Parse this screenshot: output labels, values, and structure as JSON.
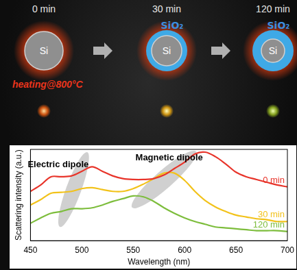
{
  "illustration": {
    "process": "heating@800°C",
    "stages": [
      {
        "time": "0 min",
        "core": "Si"
      },
      {
        "time": "30 min",
        "core": "Si",
        "shell": "SiO₂"
      },
      {
        "time": "120 min",
        "core": "Si",
        "shell": "SiO₂"
      }
    ]
  },
  "chart_data": {
    "type": "line",
    "x_label": "Wavelength (nm)",
    "y_label": "Scattering intensity (a.u.)",
    "annotations": [
      "Electric dipole",
      "Magnetic dipole"
    ],
    "x": [
      450,
      460,
      470,
      480,
      490,
      500,
      510,
      520,
      530,
      540,
      550,
      560,
      570,
      580,
      590,
      600,
      610,
      620,
      630,
      640,
      650,
      660,
      670,
      680,
      690,
      700
    ],
    "series": [
      {
        "name": "0 min",
        "color": "#e8342a",
        "values": [
          5.4,
          6.1,
          7.0,
          7.0,
          7.1,
          7.6,
          8.1,
          7.6,
          7.1,
          6.8,
          6.7,
          6.7,
          6.8,
          7.2,
          7.9,
          8.6,
          9.5,
          9.7,
          9.2,
          8.4,
          7.5,
          7.0,
          6.7,
          6.4,
          6.1,
          5.9
        ]
      },
      {
        "name": "30 min",
        "color": "#f2c21a",
        "values": [
          3.9,
          4.5,
          5.2,
          5.3,
          5.4,
          5.7,
          5.8,
          5.6,
          5.4,
          5.4,
          5.7,
          6.2,
          6.8,
          7.4,
          7.4,
          6.6,
          5.4,
          4.4,
          3.7,
          3.2,
          2.8,
          2.6,
          2.4,
          2.3,
          2.1,
          2.1
        ]
      },
      {
        "name": "120 min",
        "color": "#7dbd3c",
        "values": [
          1.9,
          2.5,
          3.0,
          3.2,
          3.5,
          3.5,
          3.6,
          3.9,
          4.3,
          4.6,
          4.9,
          4.8,
          4.3,
          3.6,
          3.0,
          2.5,
          2.1,
          1.8,
          1.5,
          1.4,
          1.3,
          1.2,
          1.1,
          1.1,
          1.1,
          1.0
        ]
      }
    ],
    "xlim": [
      450,
      700
    ],
    "xticks": [
      450,
      500,
      550,
      600,
      650,
      700
    ],
    "ylim": [
      0,
      10
    ],
    "tick_labels": "x",
    "grid": false
  }
}
